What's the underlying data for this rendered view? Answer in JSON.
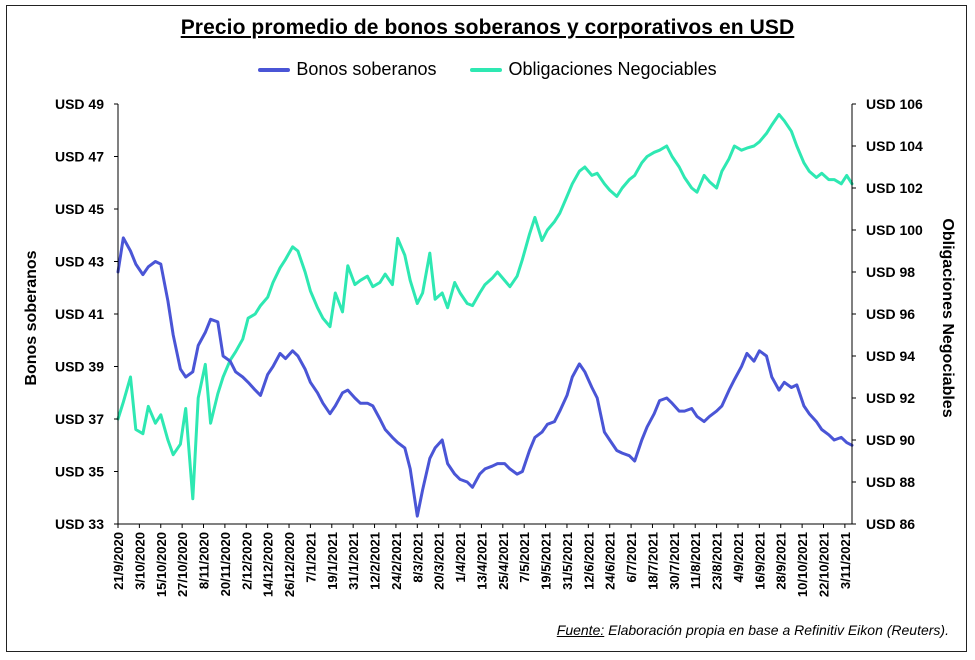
{
  "chart_data": {
    "type": "line",
    "title": "Precio promedio de bonos soberanos y corporativos en USD",
    "ylabel_left": "Bonos soberanos",
    "ylabel_right": "Obligaciones Negociables",
    "y_left_ticks": [
      "USD 33",
      "USD 35",
      "USD 37",
      "USD 39",
      "USD 41",
      "USD 43",
      "USD 45",
      "USD 47",
      "USD 49"
    ],
    "y_right_ticks": [
      "USD 86",
      "USD 88",
      "USD 90",
      "USD 92",
      "USD 94",
      "USD 96",
      "USD 98",
      "USD 100",
      "USD 102",
      "USD 104",
      "USD 106"
    ],
    "ylim_left": [
      33,
      49
    ],
    "ylim_right": [
      86,
      106
    ],
    "x_ticks": [
      "21/9/2020",
      "3/10/2020",
      "15/10/2020",
      "27/10/2020",
      "8/11/2020",
      "20/11/2020",
      "2/12/2020",
      "14/12/2020",
      "26/12/2020",
      "7/1/2021",
      "19/1/2021",
      "31/1/2021",
      "12/2/2021",
      "24/2/2021",
      "8/3/2021",
      "20/3/2021",
      "1/4/2021",
      "13/4/2021",
      "25/4/2021",
      "7/5/2021",
      "19/5/2021",
      "31/5/2021",
      "12/6/2021",
      "24/6/2021",
      "6/7/2021",
      "18/7/2021",
      "30/7/2021",
      "11/8/2021",
      "23/8/2021",
      "4/9/2021",
      "16/9/2021",
      "28/9/2021",
      "10/10/2021",
      "22/10/2021",
      "3/11/2021"
    ],
    "x_range": [
      "21/9/2020",
      "7/11/2021"
    ],
    "grid": false,
    "legend_position": "top",
    "series": [
      {
        "name": "Bonos soberanos",
        "axis": "left",
        "color": "#4a55d6",
        "x": [
          "21/9/2020",
          "24/9/2020",
          "28/9/2020",
          "1/10/2020",
          "5/10/2020",
          "8/10/2020",
          "12/10/2020",
          "15/10/2020",
          "19/10/2020",
          "22/10/2020",
          "26/10/2020",
          "29/10/2020",
          "2/11/2020",
          "5/11/2020",
          "9/11/2020",
          "12/11/2020",
          "16/11/2020",
          "19/11/2020",
          "23/11/2020",
          "26/11/2020",
          "30/11/2020",
          "3/12/2020",
          "7/12/2020",
          "10/12/2020",
          "14/12/2020",
          "17/12/2020",
          "21/12/2020",
          "24/12/2020",
          "28/12/2020",
          "31/12/2020",
          "4/1/2021",
          "7/1/2021",
          "11/1/2021",
          "14/1/2021",
          "18/1/2021",
          "21/1/2021",
          "25/1/2021",
          "28/1/2021",
          "1/2/2021",
          "4/2/2021",
          "8/2/2021",
          "11/2/2021",
          "15/2/2021",
          "18/2/2021",
          "22/2/2021",
          "25/2/2021",
          "1/3/2021",
          "4/3/2021",
          "8/3/2021",
          "11/3/2021",
          "15/3/2021",
          "18/3/2021",
          "22/3/2021",
          "25/3/2021",
          "29/3/2021",
          "1/4/2021",
          "5/4/2021",
          "8/4/2021",
          "12/4/2021",
          "15/4/2021",
          "19/4/2021",
          "22/4/2021",
          "26/4/2021",
          "29/4/2021",
          "3/5/2021",
          "6/5/2021",
          "10/5/2021",
          "13/5/2021",
          "17/5/2021",
          "20/5/2021",
          "24/5/2021",
          "27/5/2021",
          "31/5/2021",
          "3/6/2021",
          "7/6/2021",
          "10/6/2021",
          "14/6/2021",
          "17/6/2021",
          "21/6/2021",
          "24/6/2021",
          "28/6/2021",
          "1/7/2021",
          "5/7/2021",
          "8/7/2021",
          "12/7/2021",
          "15/7/2021",
          "19/7/2021",
          "22/7/2021",
          "26/7/2021",
          "29/7/2021",
          "2/8/2021",
          "5/8/2021",
          "9/8/2021",
          "12/8/2021",
          "16/8/2021",
          "19/8/2021",
          "23/8/2021",
          "26/8/2021",
          "30/8/2021",
          "2/9/2021",
          "6/9/2021",
          "9/9/2021",
          "13/9/2021",
          "16/9/2021",
          "20/9/2021",
          "23/9/2021",
          "27/9/2021",
          "30/9/2021",
          "4/10/2021",
          "7/10/2021",
          "11/10/2021",
          "14/10/2021",
          "18/10/2021",
          "21/10/2021",
          "25/10/2021",
          "28/10/2021",
          "1/11/2021",
          "4/11/2021",
          "7/11/2021"
        ],
        "values": [
          42.6,
          43.9,
          43.4,
          42.9,
          42.5,
          42.8,
          43.0,
          42.9,
          41.5,
          40.2,
          38.9,
          38.6,
          38.8,
          39.8,
          40.3,
          40.8,
          40.7,
          39.4,
          39.2,
          38.8,
          38.6,
          38.4,
          38.1,
          37.9,
          38.7,
          39.0,
          39.5,
          39.3,
          39.6,
          39.4,
          38.9,
          38.4,
          38.0,
          37.6,
          37.2,
          37.5,
          38.0,
          38.1,
          37.8,
          37.6,
          37.6,
          37.5,
          37.0,
          36.6,
          36.3,
          36.1,
          35.9,
          35.1,
          33.3,
          34.3,
          35.5,
          35.9,
          36.2,
          35.3,
          34.9,
          34.7,
          34.6,
          34.4,
          34.9,
          35.1,
          35.2,
          35.3,
          35.3,
          35.1,
          34.9,
          35.0,
          35.8,
          36.3,
          36.5,
          36.8,
          36.9,
          37.3,
          37.9,
          38.6,
          39.1,
          38.8,
          38.2,
          37.8,
          36.5,
          36.2,
          35.8,
          35.7,
          35.6,
          35.4,
          36.2,
          36.7,
          37.2,
          37.7,
          37.8,
          37.6,
          37.3,
          37.3,
          37.4,
          37.1,
          36.9,
          37.1,
          37.3,
          37.5,
          38.1,
          38.5,
          39.0,
          39.5,
          39.2,
          39.6,
          39.4,
          38.6,
          38.1,
          38.4,
          38.2,
          38.3,
          37.5,
          37.2,
          36.9,
          36.6,
          36.4,
          36.2,
          36.3,
          36.1,
          36.0
        ]
      },
      {
        "name": "Obligaciones Negociables",
        "axis": "right",
        "color": "#2ee8b2",
        "x": [
          "21/9/2020",
          "24/9/2020",
          "28/9/2020",
          "1/10/2020",
          "5/10/2020",
          "8/10/2020",
          "12/10/2020",
          "15/10/2020",
          "19/10/2020",
          "22/10/2020",
          "26/10/2020",
          "29/10/2020",
          "2/11/2020",
          "5/11/2020",
          "9/11/2020",
          "12/11/2020",
          "16/11/2020",
          "19/11/2020",
          "23/11/2020",
          "26/11/2020",
          "30/11/2020",
          "3/12/2020",
          "7/12/2020",
          "10/12/2020",
          "14/12/2020",
          "17/12/2020",
          "21/12/2020",
          "24/12/2020",
          "28/12/2020",
          "31/12/2020",
          "4/1/2021",
          "7/1/2021",
          "11/1/2021",
          "14/1/2021",
          "18/1/2021",
          "21/1/2021",
          "25/1/2021",
          "28/1/2021",
          "1/2/2021",
          "4/2/2021",
          "8/2/2021",
          "11/2/2021",
          "15/2/2021",
          "18/2/2021",
          "22/2/2021",
          "25/2/2021",
          "1/3/2021",
          "4/3/2021",
          "8/3/2021",
          "11/3/2021",
          "15/3/2021",
          "18/3/2021",
          "22/3/2021",
          "25/3/2021",
          "29/3/2021",
          "1/4/2021",
          "5/4/2021",
          "8/4/2021",
          "12/4/2021",
          "15/4/2021",
          "19/4/2021",
          "22/4/2021",
          "26/4/2021",
          "29/4/2021",
          "3/5/2021",
          "6/5/2021",
          "10/5/2021",
          "13/5/2021",
          "17/5/2021",
          "20/5/2021",
          "24/5/2021",
          "27/5/2021",
          "31/5/2021",
          "3/6/2021",
          "7/6/2021",
          "10/6/2021",
          "14/6/2021",
          "17/6/2021",
          "21/6/2021",
          "24/6/2021",
          "28/6/2021",
          "1/7/2021",
          "5/7/2021",
          "8/7/2021",
          "12/7/2021",
          "15/7/2021",
          "19/7/2021",
          "22/7/2021",
          "26/7/2021",
          "29/7/2021",
          "2/8/2021",
          "5/8/2021",
          "9/8/2021",
          "12/8/2021",
          "16/8/2021",
          "19/8/2021",
          "23/8/2021",
          "26/8/2021",
          "30/8/2021",
          "2/9/2021",
          "6/9/2021",
          "9/9/2021",
          "13/9/2021",
          "16/9/2021",
          "20/9/2021",
          "23/9/2021",
          "27/9/2021",
          "30/9/2021",
          "4/10/2021",
          "7/10/2021",
          "11/10/2021",
          "14/10/2021",
          "18/10/2021",
          "21/10/2021",
          "25/10/2021",
          "28/10/2021",
          "1/11/2021",
          "4/11/2021",
          "7/11/2021"
        ],
        "values": [
          91.0,
          91.8,
          93.0,
          90.5,
          90.3,
          91.6,
          90.8,
          91.2,
          90.0,
          89.3,
          89.8,
          91.5,
          87.2,
          92.0,
          93.6,
          90.8,
          92.2,
          93.0,
          93.8,
          94.2,
          94.8,
          95.8,
          96.0,
          96.4,
          96.8,
          97.5,
          98.2,
          98.6,
          99.2,
          99.0,
          98.0,
          97.1,
          96.3,
          95.8,
          95.4,
          97.0,
          96.1,
          98.3,
          97.4,
          97.6,
          97.8,
          97.3,
          97.5,
          97.9,
          97.4,
          99.6,
          98.8,
          97.6,
          96.5,
          97.0,
          98.9,
          96.7,
          97.0,
          96.3,
          97.5,
          97.0,
          96.5,
          96.4,
          97.0,
          97.4,
          97.7,
          98.0,
          97.6,
          97.3,
          97.8,
          98.6,
          99.8,
          100.6,
          99.5,
          100.0,
          100.4,
          100.8,
          101.6,
          102.2,
          102.8,
          103.0,
          102.6,
          102.7,
          102.2,
          101.9,
          101.6,
          102.0,
          102.4,
          102.6,
          103.2,
          103.5,
          103.7,
          103.8,
          104.0,
          103.5,
          103.0,
          102.5,
          102.0,
          101.8,
          102.6,
          102.3,
          102.0,
          102.8,
          103.4,
          104.0,
          103.8,
          103.9,
          104.0,
          104.2,
          104.6,
          105.0,
          105.5,
          105.2,
          104.7,
          104.0,
          103.2,
          102.8,
          102.5,
          102.7,
          102.4,
          102.4,
          102.2,
          102.6,
          102.2
        ]
      }
    ]
  },
  "source": {
    "label": "Fuente:",
    "text": "Elaboración propia en base a Refinitiv Eikon (Reuters)."
  }
}
